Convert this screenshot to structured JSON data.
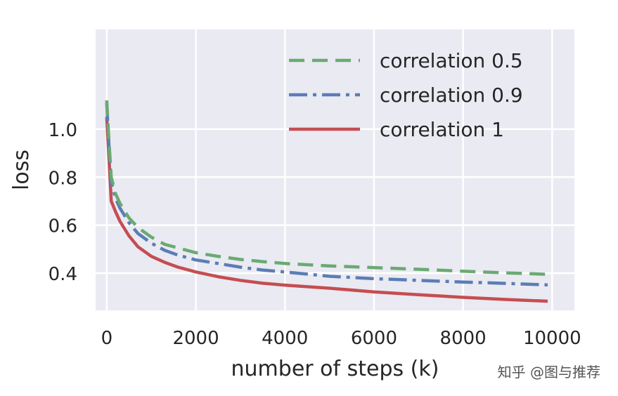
{
  "chart_data": {
    "type": "line",
    "xlabel": "number of steps (k)",
    "ylabel": "loss",
    "xlim": [
      -250,
      10500
    ],
    "ylim": [
      0.245,
      1.415
    ],
    "grid": true,
    "legend_position": "top-right",
    "x_ticks": [
      {
        "value": 0,
        "label": "0"
      },
      {
        "value": 2000,
        "label": "2000"
      },
      {
        "value": 4000,
        "label": "4000"
      },
      {
        "value": 6000,
        "label": "6000"
      },
      {
        "value": 8000,
        "label": "8000"
      },
      {
        "value": 10000,
        "label": "10000"
      }
    ],
    "y_ticks": [
      {
        "value": 0.4,
        "label": "0.4"
      },
      {
        "value": 0.6,
        "label": "0.6"
      },
      {
        "value": 0.8,
        "label": "0.8"
      },
      {
        "value": 1.0,
        "label": "1.0"
      }
    ],
    "series": [
      {
        "name": "correlation 0.5",
        "color": "#6aaa72",
        "dash": "dashed",
        "x": [
          0,
          50,
          100,
          200,
          300,
          500,
          700,
          1000,
          1300,
          1600,
          2000,
          2500,
          3000,
          3500,
          4000,
          5000,
          6000,
          7000,
          8000,
          9000,
          9900
        ],
        "y": [
          1.12,
          0.95,
          0.8,
          0.73,
          0.69,
          0.63,
          0.59,
          0.55,
          0.52,
          0.505,
          0.485,
          0.47,
          0.457,
          0.448,
          0.44,
          0.43,
          0.423,
          0.416,
          0.408,
          0.401,
          0.395
        ]
      },
      {
        "name": "correlation 0.9",
        "color": "#5b7db5",
        "dash": "dashdot",
        "x": [
          0,
          50,
          100,
          200,
          300,
          500,
          700,
          1000,
          1300,
          1600,
          2000,
          2500,
          3000,
          3500,
          4000,
          5000,
          6000,
          7000,
          8000,
          9000,
          9900
        ],
        "y": [
          1.11,
          0.93,
          0.78,
          0.71,
          0.67,
          0.61,
          0.565,
          0.525,
          0.495,
          0.475,
          0.455,
          0.44,
          0.425,
          0.413,
          0.405,
          0.387,
          0.377,
          0.37,
          0.363,
          0.357,
          0.351
        ]
      },
      {
        "name": "correlation 1",
        "color": "#c44e52",
        "dash": "solid",
        "x": [
          0,
          50,
          100,
          200,
          300,
          500,
          700,
          1000,
          1300,
          1600,
          2000,
          2500,
          3000,
          3500,
          4000,
          5000,
          6000,
          7000,
          8000,
          9000,
          9900
        ],
        "y": [
          1.05,
          0.88,
          0.7,
          0.655,
          0.615,
          0.555,
          0.51,
          0.47,
          0.445,
          0.425,
          0.405,
          0.385,
          0.37,
          0.358,
          0.35,
          0.337,
          0.322,
          0.31,
          0.299,
          0.29,
          0.283
        ]
      }
    ]
  },
  "watermark": {
    "text": "知乎 @图与推荐",
    "icon": "zhihu-logo-icon"
  }
}
